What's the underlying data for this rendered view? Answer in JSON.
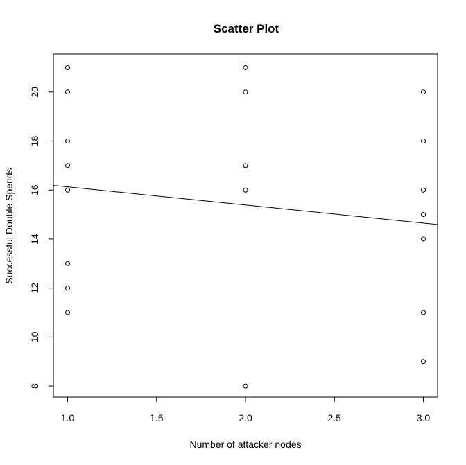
{
  "chart_data": {
    "type": "scatter",
    "title": "Scatter Plot",
    "xlabel": "Number of attacker nodes",
    "ylabel": "Successful Double Spends",
    "xlim": [
      0.92,
      3.08
    ],
    "ylim": [
      7.55,
      21.55
    ],
    "x_ticks": [
      1.0,
      1.5,
      2.0,
      2.5,
      3.0
    ],
    "x_tick_labels": [
      "1.0",
      "1.5",
      "2.0",
      "2.5",
      "3.0"
    ],
    "y_ticks": [
      8,
      10,
      12,
      14,
      16,
      18,
      20
    ],
    "y_tick_labels": [
      "8",
      "10",
      "12",
      "14",
      "16",
      "18",
      "20"
    ],
    "grid": false,
    "points": [
      {
        "x": 1,
        "y": 21
      },
      {
        "x": 1,
        "y": 20
      },
      {
        "x": 1,
        "y": 18
      },
      {
        "x": 1,
        "y": 17
      },
      {
        "x": 1,
        "y": 16
      },
      {
        "x": 1,
        "y": 13
      },
      {
        "x": 1,
        "y": 12
      },
      {
        "x": 1,
        "y": 11
      },
      {
        "x": 2,
        "y": 21
      },
      {
        "x": 2,
        "y": 20
      },
      {
        "x": 2,
        "y": 17
      },
      {
        "x": 2,
        "y": 16
      },
      {
        "x": 2,
        "y": 8
      },
      {
        "x": 3,
        "y": 20
      },
      {
        "x": 3,
        "y": 18
      },
      {
        "x": 3,
        "y": 16
      },
      {
        "x": 3,
        "y": 15
      },
      {
        "x": 3,
        "y": 14
      },
      {
        "x": 3,
        "y": 11
      },
      {
        "x": 3,
        "y": 9
      }
    ],
    "regression_line": {
      "intercept": 16.87,
      "slope": -0.74
    },
    "colors": {
      "points": "#000000",
      "line": "#000000",
      "background": "#ffffff"
    }
  }
}
